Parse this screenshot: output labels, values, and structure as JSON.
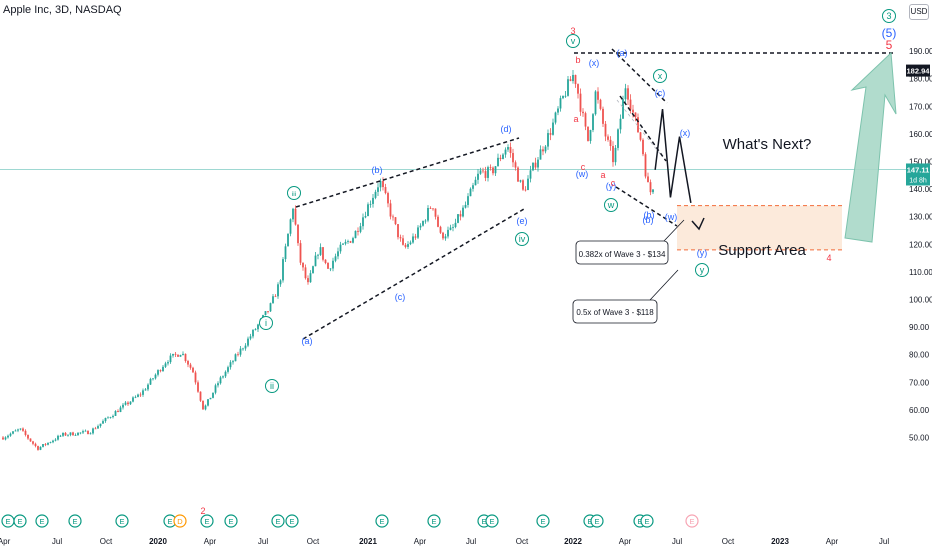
{
  "header": {
    "title": "Apple Inc, 3D, NASDAQ",
    "currency": "USD"
  },
  "chart_data": {
    "type": "candlestick",
    "title": "Apple Inc, 3D, NASDAQ",
    "ylim": [
      45,
      195
    ],
    "y_ticks": [
      50,
      60,
      70,
      80,
      90,
      100,
      110,
      120,
      130,
      140,
      150,
      160,
      170,
      180,
      190
    ],
    "x_tick_labels": [
      "Apr",
      "Jul",
      "Oct",
      "2020",
      "Apr",
      "Jul",
      "Oct",
      "2021",
      "Apr",
      "Jul",
      "Oct",
      "2022",
      "Apr",
      "Jul",
      "Oct",
      "2023",
      "Apr",
      "Jul"
    ],
    "price_path": [
      [
        "2019-04-01",
        50
      ],
      [
        "2019-05-01",
        53
      ],
      [
        "2019-06-01",
        46
      ],
      [
        "2019-07-15",
        51
      ],
      [
        "2019-09-01",
        52
      ],
      [
        "2019-10-15",
        59
      ],
      [
        "2019-12-01",
        66
      ],
      [
        "2020-01-15",
        78
      ],
      [
        "2020-02-10",
        81
      ],
      [
        "2020-03-01",
        74
      ],
      [
        "2020-03-20",
        60
      ],
      [
        "2020-04-15",
        70
      ],
      [
        "2020-05-15",
        79
      ],
      [
        "2020-06-15",
        88
      ],
      [
        "2020-07-15",
        97
      ],
      [
        "2020-08-01",
        106
      ],
      [
        "2020-08-25",
        134
      ],
      [
        "2020-09-05",
        115
      ],
      [
        "2020-09-20",
        105
      ],
      [
        "2020-10-10",
        119
      ],
      [
        "2020-10-25",
        111
      ],
      [
        "2020-11-15",
        118
      ],
      [
        "2020-12-10",
        123
      ],
      [
        "2021-01-25",
        143
      ],
      [
        "2021-02-15",
        130
      ],
      [
        "2021-03-08",
        118
      ],
      [
        "2021-04-01",
        124
      ],
      [
        "2021-04-28",
        135
      ],
      [
        "2021-05-12",
        123
      ],
      [
        "2021-06-01",
        125
      ],
      [
        "2021-06-25",
        134
      ],
      [
        "2021-07-20",
        146
      ],
      [
        "2021-08-10",
        146
      ],
      [
        "2021-09-07",
        156
      ],
      [
        "2021-10-05",
        139
      ],
      [
        "2021-10-25",
        149
      ],
      [
        "2021-11-20",
        160
      ],
      [
        "2021-12-20",
        176
      ],
      [
        "2022-01-03",
        182
      ],
      [
        "2022-01-27",
        157
      ],
      [
        "2022-02-10",
        175
      ],
      [
        "2022-03-01",
        158
      ],
      [
        "2022-03-14",
        150
      ],
      [
        "2022-04-04",
        178
      ],
      [
        "2022-04-20",
        165
      ],
      [
        "2022-05-02",
        157
      ],
      [
        "2022-05-12",
        142
      ],
      [
        "2022-05-20",
        138
      ],
      [
        "2022-05-26",
        147
      ]
    ],
    "projection": [
      [
        "2022-05-26",
        147
      ],
      [
        "2022-06-08",
        169
      ],
      [
        "2022-06-22",
        137
      ],
      [
        "2022-07-08",
        159
      ],
      [
        "2022-07-28",
        135
      ]
    ],
    "levels": [
      {
        "label": "182.94",
        "value": 182.94,
        "color": "#131722"
      },
      {
        "label": "147.11",
        "value": 147.11,
        "color": "#26a69a",
        "countdown": "1d 8h"
      }
    ],
    "support_area": {
      "label": "Support Area",
      "from": 134,
      "to": 118
    },
    "annotations": [
      {
        "text": "What's Next?"
      },
      {
        "text": "0.382x of Wave 3 - $134"
      },
      {
        "text": "0.5x of Wave 3 - $118"
      }
    ],
    "wave_labels": [
      "3",
      "v",
      "(a)",
      "(x)",
      "x",
      "(c)",
      "(x)",
      "(b)",
      "(w)",
      "(y)",
      "w",
      "(b)",
      "(w)",
      "b",
      "c",
      "a",
      "a",
      "c",
      "(d)",
      "(e)",
      "iv",
      "(b)",
      "(c)",
      "(a)",
      "iii",
      "i",
      "ii",
      "2",
      "(y)",
      "y",
      "4",
      "3",
      "(5)",
      "5"
    ],
    "event_markers": [
      "E",
      "E",
      "E",
      "E",
      "E",
      "E",
      "D",
      "E",
      "E",
      "E",
      "E",
      "E",
      "E",
      "E",
      "E",
      "E",
      "E",
      "E",
      "E",
      "E",
      "E"
    ],
    "grid": false,
    "legend": "none"
  }
}
